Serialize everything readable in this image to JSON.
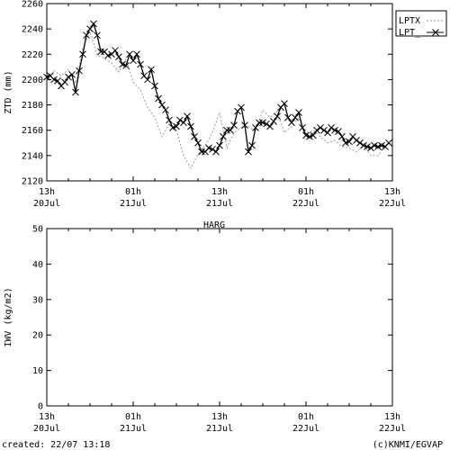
{
  "footer": {
    "created": "created: 22/07 13:18",
    "credit": "(c)KNMI/EGVAP"
  },
  "time_ticks": [
    [
      "13h",
      "20Jul"
    ],
    [
      "01h",
      "21Jul"
    ],
    [
      "13h",
      "21Jul"
    ],
    [
      "01h",
      "22Jul"
    ],
    [
      "13h",
      "22Jul"
    ]
  ],
  "chart_data": [
    {
      "type": "line",
      "title": "",
      "xlabel": "",
      "ylabel": "ZTD (mm)",
      "x_unit": "hours",
      "xlim": [
        0,
        48
      ],
      "ylim": [
        2120,
        2260
      ],
      "yticks": [
        2120,
        2140,
        2160,
        2180,
        2200,
        2220,
        2240,
        2260
      ],
      "legend_position": "top-right",
      "series": [
        {
          "name": "LPTX",
          "style": "dashed-grey",
          "color": "#9a9a9a",
          "x": [
            0,
            1,
            2,
            3,
            4,
            5,
            6,
            7,
            8,
            9,
            10,
            11,
            12,
            13,
            14,
            15,
            16,
            17,
            18,
            19,
            20,
            21,
            22,
            23,
            24,
            25,
            26,
            27,
            28,
            29,
            30,
            31,
            32,
            33,
            34,
            35,
            36,
            37,
            38,
            39,
            40,
            41,
            42,
            43,
            44,
            45,
            46,
            47,
            48
          ],
          "y": [
            2200,
            2207,
            2203,
            2208,
            2197,
            2225,
            2238,
            2219,
            2217,
            2213,
            2206,
            2216,
            2198,
            2192,
            2178,
            2170,
            2155,
            2165,
            2160,
            2140,
            2130,
            2141,
            2148,
            2158,
            2174,
            2146,
            2158,
            2162,
            2163,
            2159,
            2176,
            2170,
            2175,
            2158,
            2163,
            2170,
            2157,
            2160,
            2155,
            2150,
            2152,
            2147,
            2146,
            2143,
            2148,
            2140,
            2140,
            2148,
            2150
          ]
        },
        {
          "name": "LPT_",
          "style": "solid-black-x",
          "color": "#000000",
          "x": [
            0,
            0.5,
            1,
            1.5,
            2,
            2.5,
            3,
            3.5,
            4,
            4.5,
            5,
            5.5,
            6,
            6.5,
            7,
            7.5,
            8,
            8.5,
            9,
            9.5,
            10,
            10.5,
            11,
            11.5,
            12,
            12.5,
            13,
            13.5,
            14,
            14.5,
            15,
            15.5,
            16,
            16.5,
            17,
            17.5,
            18,
            18.5,
            19,
            19.5,
            20,
            20.5,
            21,
            21.5,
            22,
            22.5,
            23,
            23.5,
            24,
            24.5,
            25,
            25.5,
            26,
            26.5,
            27,
            27.5,
            28,
            28.5,
            29,
            29.5,
            30,
            30.5,
            31,
            31.5,
            32,
            32.5,
            33,
            33.5,
            34,
            34.5,
            35,
            35.5,
            36,
            36.5,
            37,
            37.5,
            38,
            38.5,
            39,
            39.5,
            40,
            40.5,
            41,
            41.5,
            42,
            42.5,
            43,
            43.5,
            44,
            44.5,
            45,
            45.5,
            46,
            46.5,
            47,
            47.5
          ],
          "y": [
            2202,
            2203,
            2200,
            2199,
            2195,
            2198,
            2202,
            2204,
            2190,
            2207,
            2220,
            2235,
            2240,
            2244,
            2235,
            2222,
            2222,
            2219,
            2220,
            2223,
            2218,
            2212,
            2211,
            2220,
            2215,
            2220,
            2212,
            2203,
            2200,
            2208,
            2195,
            2185,
            2180,
            2176,
            2168,
            2162,
            2163,
            2168,
            2166,
            2171,
            2163,
            2155,
            2150,
            2143,
            2143,
            2146,
            2145,
            2143,
            2148,
            2155,
            2160,
            2160,
            2164,
            2175,
            2178,
            2164,
            2143,
            2148,
            2162,
            2166,
            2166,
            2165,
            2163,
            2167,
            2171,
            2178,
            2181,
            2170,
            2166,
            2170,
            2174,
            2162,
            2156,
            2155,
            2156,
            2160,
            2162,
            2160,
            2158,
            2162,
            2160,
            2159,
            2155,
            2150,
            2151,
            2155,
            2152,
            2150,
            2148,
            2147,
            2146,
            2148,
            2147,
            2148,
            2147,
            2150
          ]
        }
      ]
    },
    {
      "type": "line",
      "title": "HARG",
      "xlabel": "",
      "ylabel": "IWV (kg/m2)",
      "x_unit": "hours",
      "xlim": [
        0,
        48
      ],
      "ylim": [
        0,
        50
      ],
      "yticks": [
        0,
        10,
        20,
        30,
        40,
        50
      ],
      "series": []
    }
  ]
}
